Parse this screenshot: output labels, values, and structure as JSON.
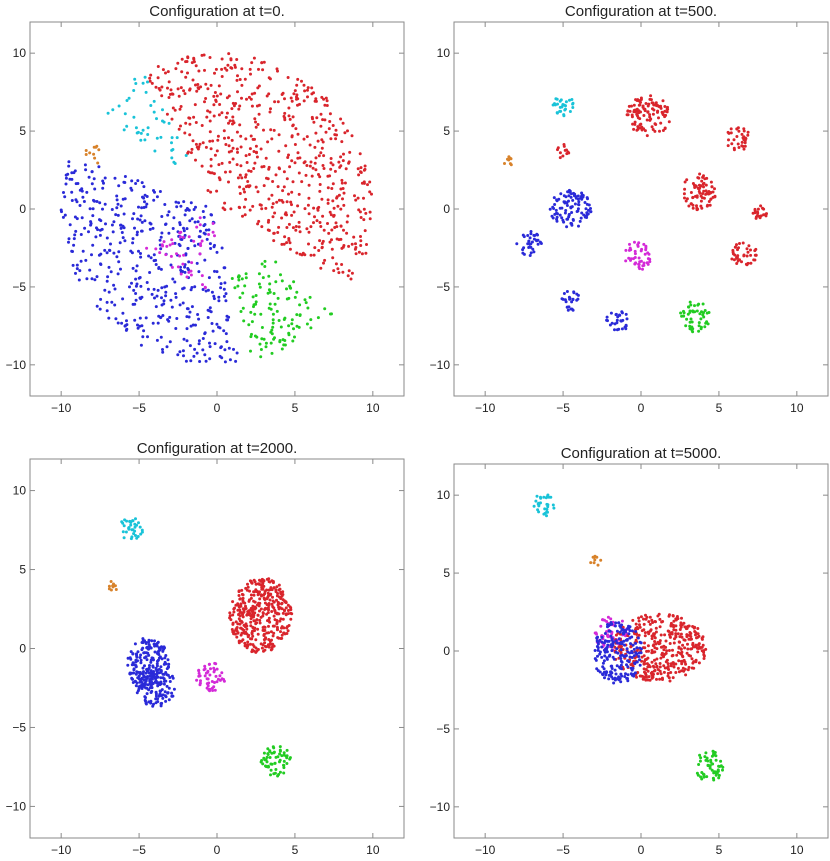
{
  "colors": {
    "red": "#d9252c",
    "blue": "#2a2ad8",
    "cyan": "#19c3d8",
    "orange": "#d8822a",
    "magenta": "#d42ad8",
    "green": "#22cc22",
    "frame": "#8a8a8a"
  },
  "chart_data": [
    {
      "type": "scatter",
      "title": "Configuration at  t=0.",
      "xlim": [
        -12,
        12
      ],
      "ylim": [
        -12,
        12
      ],
      "xticks": [
        -10,
        -5,
        0,
        5,
        10
      ],
      "yticks": [
        -10,
        -5,
        0,
        5,
        10
      ],
      "grid": false,
      "clusters": [
        {
          "color": "red",
          "kind": "sector",
          "start": -30,
          "end": 118,
          "rmin": 0.3,
          "rmax": 10,
          "n": 620
        },
        {
          "color": "blue",
          "kind": "sector",
          "start": 160,
          "end": 278,
          "rmin": 0.3,
          "rmax": 10,
          "n": 480
        },
        {
          "color": "cyan",
          "kind": "sector",
          "start": 118,
          "end": 140,
          "rmin": 3.5,
          "rmax": 10,
          "n": 45
        },
        {
          "color": "orange",
          "kind": "sector",
          "start": 152,
          "end": 160,
          "rmin": 8,
          "rmax": 9.2,
          "n": 10
        },
        {
          "color": "magenta",
          "kind": "sector",
          "start": 205,
          "end": 268,
          "rmin": 0.2,
          "rmax": 5.2,
          "n": 45
        },
        {
          "color": "green",
          "kind": "sector",
          "start": 282,
          "end": 318,
          "rmin": 4.5,
          "rmax": 10,
          "n": 120
        }
      ]
    },
    {
      "type": "scatter",
      "title": "Configuration at  t=500.",
      "xlim": [
        -12,
        12
      ],
      "ylim": [
        -12,
        12
      ],
      "xticks": [
        -10,
        -5,
        0,
        5,
        10
      ],
      "yticks": [
        -10,
        -5,
        0,
        5,
        10
      ],
      "grid": false,
      "clusters": [
        {
          "color": "cyan",
          "kind": "blob",
          "cx": -5.0,
          "cy": 6.6,
          "rx": 0.75,
          "ry": 0.7,
          "n": 30
        },
        {
          "color": "red",
          "kind": "blob",
          "cx": 0.5,
          "cy": 6.0,
          "rx": 1.4,
          "ry": 1.3,
          "n": 110
        },
        {
          "color": "red",
          "kind": "blob",
          "cx": 6.2,
          "cy": 4.5,
          "rx": 0.8,
          "ry": 0.8,
          "n": 35
        },
        {
          "color": "red",
          "kind": "blob",
          "cx": -5.0,
          "cy": 3.7,
          "rx": 0.45,
          "ry": 0.45,
          "n": 12
        },
        {
          "color": "orange",
          "kind": "blob",
          "cx": -8.6,
          "cy": 3.1,
          "rx": 0.35,
          "ry": 0.45,
          "n": 8
        },
        {
          "color": "red",
          "kind": "blob",
          "cx": 3.7,
          "cy": 1.1,
          "rx": 1.1,
          "ry": 1.2,
          "n": 80
        },
        {
          "color": "red",
          "kind": "blob",
          "cx": 7.6,
          "cy": -0.1,
          "rx": 0.6,
          "ry": 0.55,
          "n": 20
        },
        {
          "color": "blue",
          "kind": "blob",
          "cx": -4.5,
          "cy": 0.0,
          "rx": 1.35,
          "ry": 1.2,
          "n": 100
        },
        {
          "color": "blue",
          "kind": "blob",
          "cx": -7.2,
          "cy": -2.2,
          "rx": 0.85,
          "ry": 0.8,
          "n": 35
        },
        {
          "color": "magenta",
          "kind": "blob",
          "cx": -0.2,
          "cy": -3.0,
          "rx": 0.85,
          "ry": 1.0,
          "n": 45
        },
        {
          "color": "red",
          "kind": "blob",
          "cx": 6.6,
          "cy": -2.9,
          "rx": 0.85,
          "ry": 0.8,
          "n": 40
        },
        {
          "color": "blue",
          "kind": "blob",
          "cx": -4.6,
          "cy": -5.9,
          "rx": 0.7,
          "ry": 0.65,
          "n": 25
        },
        {
          "color": "blue",
          "kind": "blob",
          "cx": -1.5,
          "cy": -7.2,
          "rx": 0.75,
          "ry": 0.7,
          "n": 30
        },
        {
          "color": "green",
          "kind": "blob",
          "cx": 3.5,
          "cy": -6.9,
          "rx": 1.0,
          "ry": 1.0,
          "n": 50
        }
      ]
    },
    {
      "type": "scatter",
      "title": "Configuration at  t=2000.",
      "xlim": [
        -12,
        12
      ],
      "ylim": [
        -12,
        12
      ],
      "xticks": [
        -10,
        -5,
        0,
        5,
        10
      ],
      "yticks": [
        -10,
        -5,
        0,
        5,
        10
      ],
      "grid": false,
      "clusters": [
        {
          "color": "cyan",
          "kind": "blob",
          "cx": -5.5,
          "cy": 7.6,
          "rx": 0.75,
          "ry": 0.75,
          "n": 35
        },
        {
          "color": "orange",
          "kind": "blob",
          "cx": -6.6,
          "cy": 3.9,
          "rx": 0.35,
          "ry": 0.45,
          "n": 9
        },
        {
          "color": "red",
          "kind": "blob",
          "cx": 2.8,
          "cy": 2.1,
          "rx": 2.0,
          "ry": 2.4,
          "n": 380
        },
        {
          "color": "blue",
          "kind": "blob",
          "cx": -4.4,
          "cy": -1.0,
          "rx": 1.35,
          "ry": 1.7,
          "n": 190
        },
        {
          "color": "blue",
          "kind": "blob",
          "cx": -3.9,
          "cy": -2.4,
          "rx": 1.3,
          "ry": 1.3,
          "n": 110
        },
        {
          "color": "magenta",
          "kind": "blob",
          "cx": -0.4,
          "cy": -1.8,
          "rx": 0.95,
          "ry": 0.9,
          "n": 50
        },
        {
          "color": "green",
          "kind": "blob",
          "cx": 3.8,
          "cy": -7.1,
          "rx": 1.0,
          "ry": 1.0,
          "n": 60
        }
      ]
    },
    {
      "type": "scatter",
      "title": "Configuration at  t=5000.",
      "xlim": [
        -12,
        12
      ],
      "ylim": [
        -12,
        12
      ],
      "xticks": [
        -10,
        -5,
        0,
        5,
        10
      ],
      "yticks": [
        -10,
        -5,
        0,
        5,
        10
      ],
      "grid": false,
      "clusters": [
        {
          "color": "cyan",
          "kind": "blob",
          "cx": -6.2,
          "cy": 9.4,
          "rx": 0.7,
          "ry": 0.75,
          "n": 30
        },
        {
          "color": "orange",
          "kind": "blob",
          "cx": -2.9,
          "cy": 5.8,
          "rx": 0.4,
          "ry": 0.35,
          "n": 9
        },
        {
          "color": "magenta",
          "kind": "blob",
          "cx": -1.9,
          "cy": 1.1,
          "rx": 1.1,
          "ry": 1.1,
          "n": 60
        },
        {
          "color": "red",
          "kind": "blob",
          "cx": 1.2,
          "cy": 0.2,
          "rx": 3.0,
          "ry": 2.2,
          "n": 380
        },
        {
          "color": "blue",
          "kind": "blob",
          "cx": -1.5,
          "cy": -0.1,
          "rx": 1.6,
          "ry": 2.0,
          "n": 200
        },
        {
          "color": "green",
          "kind": "blob",
          "cx": 4.4,
          "cy": -7.4,
          "rx": 0.95,
          "ry": 1.0,
          "n": 55
        }
      ]
    }
  ]
}
